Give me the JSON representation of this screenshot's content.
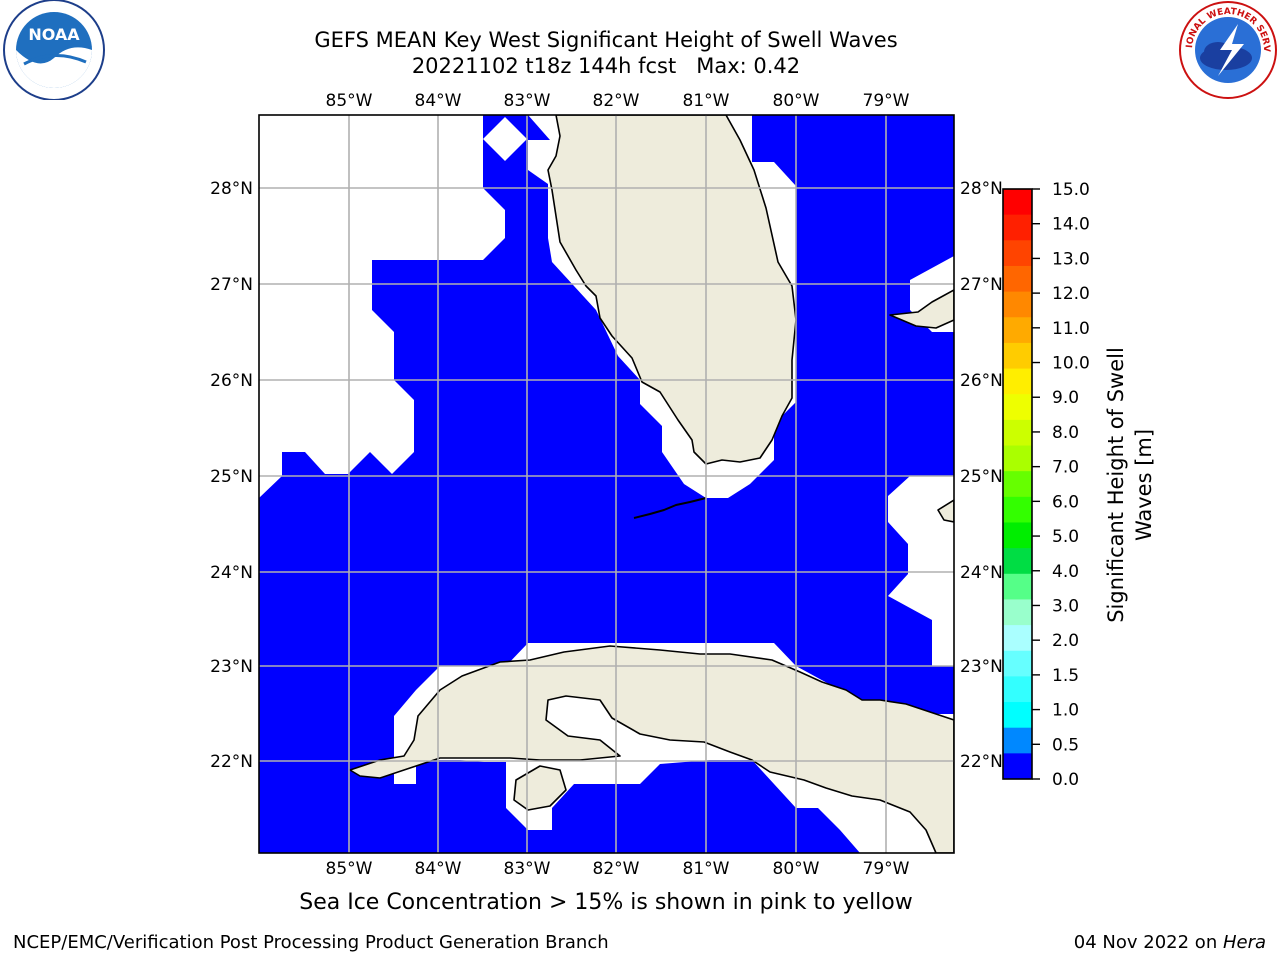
{
  "title": {
    "line1": "GEFS MEAN Key West Significant Height of Swell Waves",
    "line2": "20221102 t18z 144h fcst   Max: 0.42"
  },
  "map": {
    "lon_labels": [
      "85°W",
      "84°W",
      "83°W",
      "82°W",
      "81°W",
      "80°W",
      "79°W"
    ],
    "lat_labels": [
      "28°N",
      "27°N",
      "26°N",
      "25°N",
      "24°N",
      "23°N",
      "22°N"
    ],
    "land_color": "#eeecdc",
    "ocean_color": "#0000ff",
    "nodata_color": "#ffffff",
    "grid_color": "#b0b0b0"
  },
  "colorbar": {
    "label": "Significant Height of Swell Waves [m]",
    "ticks": [
      "15.0",
      "14.0",
      "13.0",
      "12.0",
      "11.0",
      "10.0",
      "9.0",
      "8.0",
      "7.0",
      "6.0",
      "5.0",
      "4.0",
      "3.0",
      "2.0",
      "1.5",
      "1.0",
      "0.5",
      "0.0"
    ],
    "colors": [
      "#ff0000",
      "#ff2000",
      "#ff4400",
      "#ff6600",
      "#ff8800",
      "#ffaa00",
      "#ffcc00",
      "#ffee00",
      "#eeff00",
      "#ccff00",
      "#aaff00",
      "#66ff00",
      "#33ff00",
      "#00ee00",
      "#00dd44",
      "#55ff88",
      "#99ffcc",
      "#aaffff",
      "#66ffff",
      "#33ffff",
      "#00ffff",
      "#0088ff",
      "#0000ff"
    ]
  },
  "caption": "Sea Ice Concentration > 15% is shown in pink to yellow",
  "footer": {
    "left": "NCEP/EMC/Verification Post Processing Product Generation Branch",
    "right_prefix": "04 Nov 2022 on ",
    "right_host": "Hera"
  },
  "logos": {
    "noaa_text": "NOAA",
    "nws_text": "NATIONAL WEATHER SERVICE"
  }
}
